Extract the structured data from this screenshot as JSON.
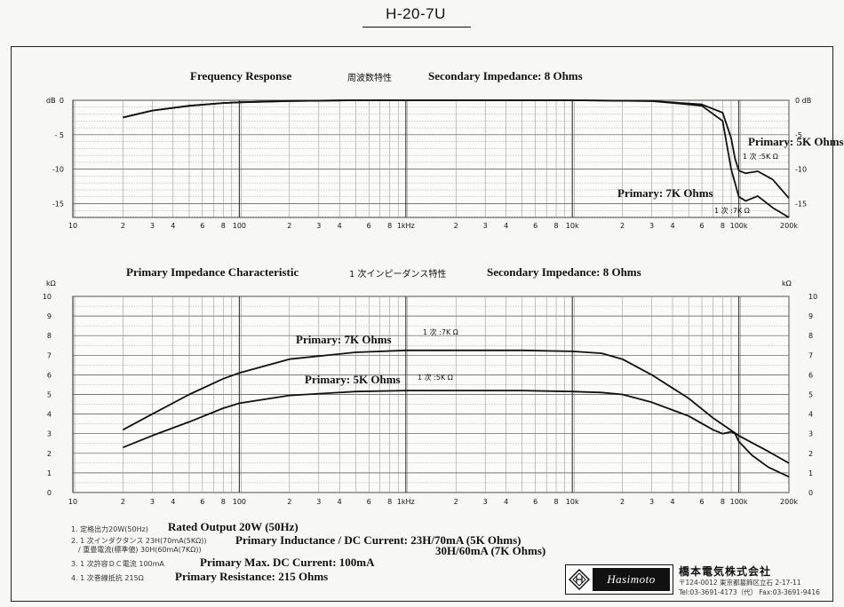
{
  "page": {
    "model": "H-20-7U"
  },
  "chart_data": [
    {
      "type": "line",
      "id": "frequency_response",
      "title": "Frequency Response",
      "title_jp": "周波数特性",
      "subtitle": "Secondary Impedance: 8 Ohms",
      "ylabel_unit": "dB",
      "x_scale": "log",
      "xlim": [
        10,
        200000
      ],
      "ylim": [
        -17,
        0
      ],
      "x_ticks": [
        {
          "v": 10,
          "label": "10"
        },
        {
          "v": 20,
          "label": "2"
        },
        {
          "v": 30,
          "label": "3"
        },
        {
          "v": 40,
          "label": "4"
        },
        {
          "v": 60,
          "label": "6"
        },
        {
          "v": 80,
          "label": "8"
        },
        {
          "v": 100,
          "label": "100"
        },
        {
          "v": 200,
          "label": "2"
        },
        {
          "v": 300,
          "label": "3"
        },
        {
          "v": 400,
          "label": "4"
        },
        {
          "v": 600,
          "label": "6"
        },
        {
          "v": 800,
          "label": "8"
        },
        {
          "v": 1000,
          "label": "1kHz"
        },
        {
          "v": 2000,
          "label": "2"
        },
        {
          "v": 3000,
          "label": "3"
        },
        {
          "v": 4000,
          "label": "4"
        },
        {
          "v": 6000,
          "label": "6"
        },
        {
          "v": 8000,
          "label": "8"
        },
        {
          "v": 10000,
          "label": "10k"
        },
        {
          "v": 20000,
          "label": "2"
        },
        {
          "v": 30000,
          "label": "3"
        },
        {
          "v": 40000,
          "label": "4"
        },
        {
          "v": 60000,
          "label": "6"
        },
        {
          "v": 80000,
          "label": "8"
        },
        {
          "v": 100000,
          "label": "100k"
        },
        {
          "v": 200000,
          "label": "200k"
        }
      ],
      "y_ticks": [
        {
          "v": 0,
          "label": "0"
        },
        {
          "v": -5,
          "label": "- 5"
        },
        {
          "v": -10,
          "label": "-10"
        },
        {
          "v": -15,
          "label": "-15"
        }
      ],
      "y_ticks_right": [
        {
          "v": 0,
          "label": "0 dB"
        },
        {
          "v": -5,
          "label": "-5"
        },
        {
          "v": -10,
          "label": "-10"
        },
        {
          "v": -15,
          "label": "-15"
        }
      ],
      "series": [
        {
          "name": "Primary: 5K Ohms",
          "label_jp": "1 次 :5K Ω",
          "x": [
            20,
            30,
            50,
            80,
            100,
            200,
            500,
            1000,
            5000,
            10000,
            30000,
            60000,
            80000,
            90000,
            95000,
            100000,
            110000,
            130000,
            160000,
            200000
          ],
          "y": [
            -2.5,
            -1.5,
            -0.8,
            -0.4,
            -0.3,
            -0.1,
            0,
            0,
            0,
            0,
            -0.1,
            -0.6,
            -1.8,
            -5.5,
            -8.5,
            -10.2,
            -10.6,
            -10.3,
            -11.5,
            -14.2
          ]
        },
        {
          "name": "Primary: 7K Ohms",
          "label_jp": "1 次 :7K Ω",
          "x": [
            20,
            30,
            50,
            80,
            100,
            200,
            500,
            1000,
            5000,
            10000,
            30000,
            60000,
            80000,
            90000,
            100000,
            110000,
            130000,
            160000,
            200000
          ],
          "y": [
            -2.5,
            -1.5,
            -0.8,
            -0.4,
            -0.3,
            -0.1,
            0,
            0,
            0,
            0,
            -0.1,
            -0.8,
            -3.0,
            -10.0,
            -14.0,
            -14.6,
            -13.9,
            -15.6,
            -17.0
          ]
        }
      ]
    },
    {
      "type": "line",
      "id": "primary_impedance",
      "title": "Primary Impedance Characteristic",
      "title_jp": "1 次インピーダンス特性",
      "subtitle": "Secondary Impedance: 8 Ohms",
      "ylabel_unit": "kΩ",
      "x_scale": "log",
      "xlim": [
        10,
        200000
      ],
      "ylim": [
        0,
        10
      ],
      "x_ticks": [
        {
          "v": 10,
          "label": "10"
        },
        {
          "v": 20,
          "label": "2"
        },
        {
          "v": 30,
          "label": "3"
        },
        {
          "v": 40,
          "label": "4"
        },
        {
          "v": 60,
          "label": "6"
        },
        {
          "v": 80,
          "label": "8"
        },
        {
          "v": 100,
          "label": "100"
        },
        {
          "v": 200,
          "label": "2"
        },
        {
          "v": 300,
          "label": "3"
        },
        {
          "v": 400,
          "label": "4"
        },
        {
          "v": 600,
          "label": "6"
        },
        {
          "v": 800,
          "label": "8"
        },
        {
          "v": 1000,
          "label": "1kHz"
        },
        {
          "v": 2000,
          "label": "2"
        },
        {
          "v": 3000,
          "label": "3"
        },
        {
          "v": 4000,
          "label": "4"
        },
        {
          "v": 6000,
          "label": "6"
        },
        {
          "v": 8000,
          "label": "8"
        },
        {
          "v": 10000,
          "label": "10k"
        },
        {
          "v": 20000,
          "label": "2"
        },
        {
          "v": 30000,
          "label": "3"
        },
        {
          "v": 40000,
          "label": "4"
        },
        {
          "v": 60000,
          "label": "6"
        },
        {
          "v": 80000,
          "label": "8"
        },
        {
          "v": 100000,
          "label": "100k"
        },
        {
          "v": 200000,
          "label": "200k"
        }
      ],
      "y_ticks": [
        {
          "v": 0,
          "label": "0"
        },
        {
          "v": 1,
          "label": "1"
        },
        {
          "v": 2,
          "label": "2"
        },
        {
          "v": 3,
          "label": "3"
        },
        {
          "v": 4,
          "label": "4"
        },
        {
          "v": 5,
          "label": "5"
        },
        {
          "v": 6,
          "label": "6"
        },
        {
          "v": 7,
          "label": "7"
        },
        {
          "v": 8,
          "label": "8"
        },
        {
          "v": 9,
          "label": "9"
        },
        {
          "v": 10,
          "label": "10"
        }
      ],
      "series": [
        {
          "name": "Primary: 7K Ohms",
          "label_jp": "1 次 :7K Ω",
          "x": [
            20,
            30,
            50,
            80,
            100,
            200,
            500,
            1000,
            2000,
            5000,
            10000,
            15000,
            20000,
            30000,
            50000,
            70000,
            100000,
            150000,
            200000
          ],
          "y": [
            3.2,
            4.0,
            5.0,
            5.8,
            6.1,
            6.8,
            7.15,
            7.25,
            7.25,
            7.25,
            7.2,
            7.1,
            6.8,
            6.0,
            4.8,
            3.8,
            2.9,
            2.1,
            1.5
          ]
        },
        {
          "name": "Primary: 5K Ohms",
          "label_jp": "1 次 :5K Ω",
          "x": [
            20,
            30,
            50,
            80,
            100,
            200,
            500,
            1000,
            2000,
            5000,
            10000,
            15000,
            20000,
            30000,
            50000,
            70000,
            80000,
            85000,
            90000,
            95000,
            100000,
            120000,
            150000,
            200000
          ],
          "y": [
            2.3,
            2.9,
            3.6,
            4.3,
            4.55,
            4.95,
            5.15,
            5.2,
            5.2,
            5.2,
            5.15,
            5.1,
            5.0,
            4.6,
            3.9,
            3.2,
            3.0,
            3.05,
            3.1,
            3.0,
            2.6,
            1.9,
            1.3,
            0.8
          ]
        }
      ]
    }
  ],
  "specs": [
    {
      "jp": "1. 定格出力20W(50Hz)",
      "en": "Rated Output 20W (50Hz)"
    },
    {
      "jp": "2. 1 次インダクタンス 23H(70mA(5KΩ))",
      "jp2": "/ 重畳電流(標準値)   30H(60mA(7KΩ))",
      "en": "Primary Inductance / DC Current: 23H/70mA (5K Ohms)",
      "en2": "30H/60mA (7K Ohms)"
    },
    {
      "jp": "3. 1 次許容ＤＣ電流   100mA",
      "en": "Primary Max. DC Current: 100mA"
    },
    {
      "jp": "4. 1 次巻線抵抗   215Ω",
      "en": "Primary Resistance: 215 Ohms"
    }
  ],
  "company": {
    "logo_text": "Hasimoto",
    "name": "橋本電気株式会社",
    "address": "〒124-0012  東京都葛飾区立石 2-17-11",
    "tel": "Tel:03-3691-4173（代）    Fax:03-3691-9416"
  }
}
